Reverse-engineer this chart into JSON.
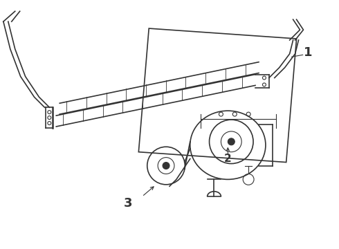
{
  "background_color": "#ffffff",
  "line_color": "#333333",
  "label_1": "1",
  "label_2": "2",
  "label_3": "3",
  "fig_width": 4.9,
  "fig_height": 3.6,
  "dpi": 100
}
